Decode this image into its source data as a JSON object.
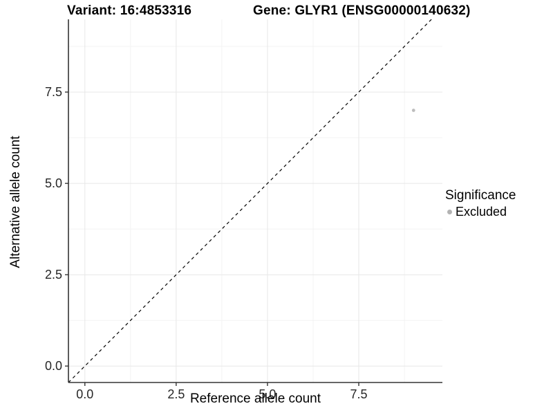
{
  "figure": {
    "title_left": "Variant: 16:4853316",
    "title_right": "Gene: GLYR1 (ENSG00000140632)"
  },
  "chart_data": {
    "type": "scatter",
    "title": "Variant: 16:4853316   Gene: GLYR1 (ENSG00000140632)",
    "xlabel": "Reference allele count",
    "ylabel": "Alternative allele count",
    "xlim": [
      -0.45,
      9.79
    ],
    "ylim": [
      -0.45,
      9.49
    ],
    "x_ticks": [
      0.0,
      2.5,
      5.0,
      7.5
    ],
    "y_ticks": [
      0.0,
      2.5,
      5.0,
      7.5
    ],
    "x_minor_ticks": [
      1.25,
      3.75,
      6.25,
      8.75
    ],
    "y_minor_ticks": [
      1.25,
      3.75,
      6.25,
      8.75
    ],
    "tick_decimals": 1,
    "grid": "major+minor",
    "reference_line": {
      "type": "identity",
      "slope": 1,
      "intercept": 0,
      "style": "dashed",
      "color": "#000000"
    },
    "series": [
      {
        "name": "Excluded",
        "color": "#bdbdbd",
        "point_radius": 2.4,
        "points": [
          {
            "x": 9,
            "y": 7
          }
        ]
      }
    ],
    "legend": {
      "title": "Significance",
      "position": "right",
      "items": [
        {
          "label": "Excluded",
          "color": "#b3b3b3"
        }
      ]
    }
  },
  "colors": {
    "major_grid": "#e7e7e7",
    "minor_grid": "#f3f3f3",
    "axis_line": "#333333",
    "tick_mark": "#333333",
    "tick_label": "#262626",
    "point": "#bdbdbd"
  }
}
